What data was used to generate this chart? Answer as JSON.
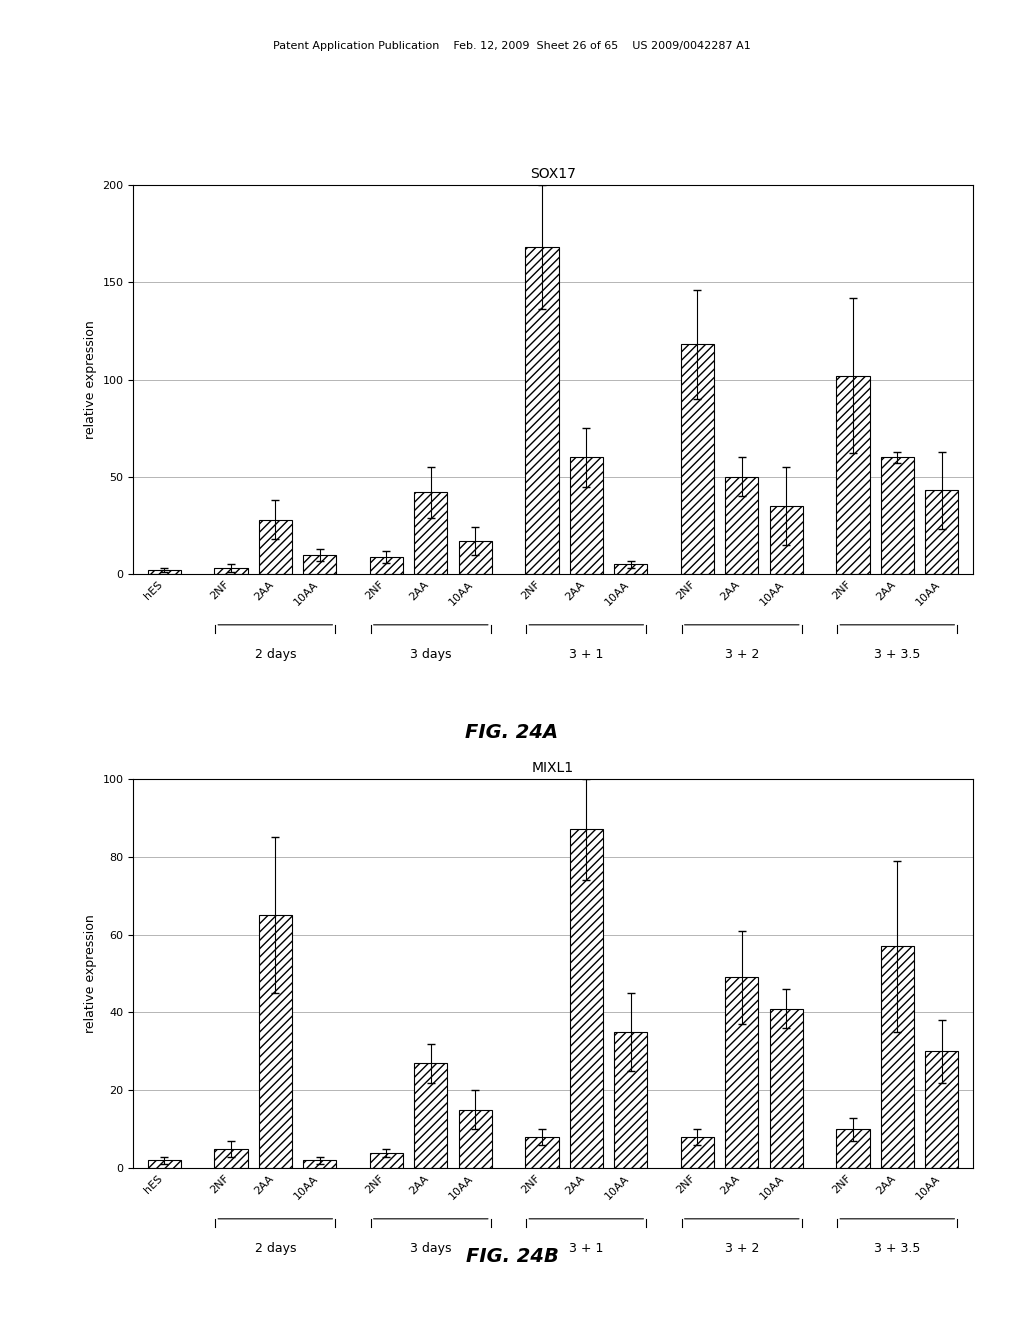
{
  "fig_title_a": "SOX17",
  "fig_title_b": "MIXL1",
  "fig_label_a": "FIG. 24A",
  "fig_label_b": "FIG. 24B",
  "ylabel": "relative expression",
  "header": "Patent Application Publication    Feb. 12, 2009  Sheet 26 of 65    US 2009/0042287 A1",
  "sox17": {
    "ylim": [
      0,
      200
    ],
    "yticks": [
      0,
      50,
      100,
      150,
      200
    ],
    "bar_values": [
      2,
      3,
      28,
      10,
      9,
      42,
      17,
      168,
      60,
      5,
      118,
      50,
      35,
      102,
      60,
      43
    ],
    "bar_errors": [
      1,
      2,
      10,
      3,
      3,
      13,
      7,
      32,
      15,
      2,
      28,
      10,
      20,
      40,
      3,
      20
    ],
    "bar_labels": [
      "hES",
      "2NF",
      "2AA",
      "10AA",
      "2NF",
      "2AA",
      "10AA",
      "2NF",
      "2AA",
      "10AA",
      "2NF",
      "2AA",
      "10AA",
      "2NF",
      "2AA",
      "10AA"
    ],
    "group_labels": [
      "",
      "2 days",
      "3 days",
      "3 + 1",
      "3 + 2",
      "3 + 3.5"
    ],
    "group_sizes": [
      1,
      3,
      3,
      3,
      3,
      3
    ]
  },
  "mixl1": {
    "ylim": [
      0,
      100
    ],
    "yticks": [
      0,
      20,
      40,
      60,
      80,
      100
    ],
    "bar_values": [
      2,
      5,
      65,
      2,
      4,
      27,
      15,
      8,
      87,
      35,
      8,
      49,
      41,
      10,
      57,
      30
    ],
    "bar_errors": [
      1,
      2,
      20,
      1,
      1,
      5,
      5,
      2,
      13,
      10,
      2,
      12,
      5,
      3,
      22,
      8
    ],
    "bar_labels": [
      "hES",
      "2NF",
      "2AA",
      "10AA",
      "2NF",
      "2AA",
      "10AA",
      "2NF",
      "2AA",
      "10AA",
      "2NF",
      "2AA",
      "10AA",
      "2NF",
      "2AA",
      "10AA"
    ],
    "group_labels": [
      "",
      "2 days",
      "3 days",
      "3 + 1",
      "3 + 2",
      "3 + 3.5"
    ],
    "group_sizes": [
      1,
      3,
      3,
      3,
      3,
      3
    ]
  },
  "bar_width": 0.75,
  "hatch_pattern": "////",
  "bar_facecolor": "white",
  "bar_edgecolor": "black",
  "error_color": "black",
  "grid_color": "#aaaaaa",
  "background_color": "white",
  "font_size_title": 10,
  "font_size_tick": 8,
  "font_size_ylabel": 9,
  "font_size_group": 9,
  "font_size_fig_label": 14,
  "font_size_header": 8
}
